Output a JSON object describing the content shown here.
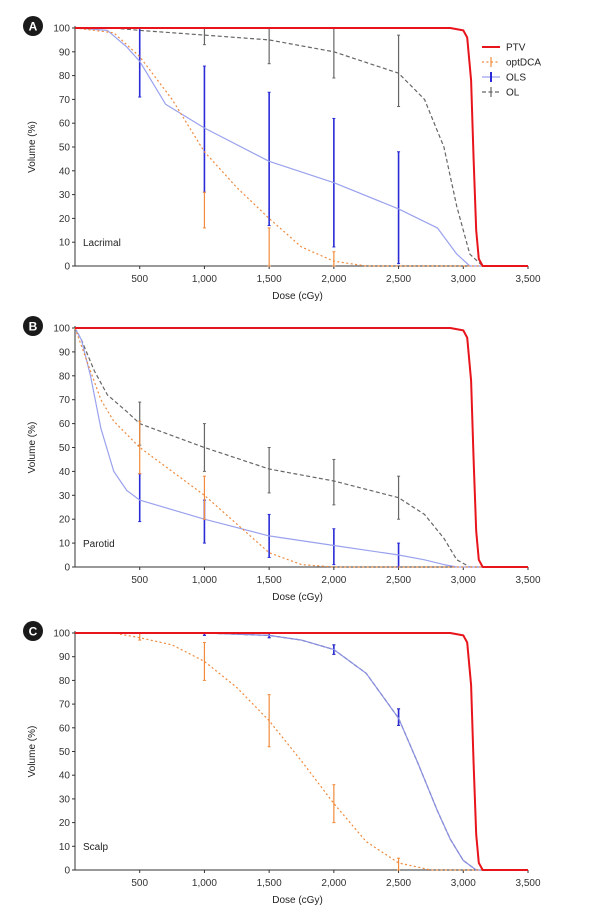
{
  "chart_data": [
    {
      "type": "line",
      "panel": "A",
      "label": "Lacrimal",
      "xlabel": "Dose (cGy)",
      "ylabel": "Volume (%)",
      "xlim": [
        0,
        3500
      ],
      "ylim": [
        0,
        100
      ],
      "xticks": [
        "500",
        "1,000",
        "1,500",
        "2,000",
        "2,500",
        "3,000",
        "3,500"
      ],
      "yticks": [
        "0",
        "10",
        "20",
        "30",
        "40",
        "50",
        "60",
        "70",
        "80",
        "90",
        "100"
      ],
      "legend": {
        "position": "top-right",
        "entries": [
          "PTV",
          "optDCA",
          "OLS",
          "OL"
        ]
      },
      "series": [
        {
          "name": "PTV",
          "color": "#e8141b",
          "style": "solid",
          "x": [
            0,
            2900,
            3000,
            3030,
            3060,
            3080,
            3100,
            3120,
            3150,
            3500
          ],
          "y": [
            100,
            100,
            99,
            96,
            78,
            45,
            15,
            3,
            0,
            0
          ]
        },
        {
          "name": "optDCA",
          "color": "#f08a3c",
          "style": "dotted",
          "x": [
            0,
            300,
            500,
            750,
            1000,
            1250,
            1500,
            1750,
            2000,
            2250,
            2500,
            3500
          ],
          "y": [
            100,
            98,
            88,
            70,
            48,
            33,
            20,
            8,
            2,
            0,
            0,
            0
          ],
          "errors": [
            {
              "x": 1000,
              "low": 16,
              "high": 31
            },
            {
              "x": 1500,
              "low": 0,
              "high": 16
            },
            {
              "x": 2000,
              "low": 0,
              "high": 6
            }
          ]
        },
        {
          "name": "OLS",
          "color": "#9aa2ee",
          "bar_color": "#2a2bd6",
          "style": "solid",
          "x": [
            0,
            250,
            400,
            500,
            700,
            1000,
            1500,
            2000,
            2500,
            2800,
            2950,
            3050,
            3120,
            3500
          ],
          "y": [
            100,
            99,
            92,
            86,
            68,
            58,
            44,
            35,
            24,
            16,
            5,
            0,
            0,
            0
          ],
          "errors": [
            {
              "x": 500,
              "low": 71,
              "high": 100
            },
            {
              "x": 1000,
              "low": 31,
              "high": 84
            },
            {
              "x": 1500,
              "low": 17,
              "high": 73
            },
            {
              "x": 2000,
              "low": 8,
              "high": 62
            },
            {
              "x": 2500,
              "low": 1,
              "high": 48
            }
          ]
        },
        {
          "name": "OL",
          "color": "#666666",
          "style": "dashed",
          "x": [
            0,
            300,
            500,
            1000,
            1500,
            2000,
            2500,
            2700,
            2850,
            2950,
            3050,
            3150,
            3500
          ],
          "y": [
            100,
            100,
            99,
            97,
            95,
            90,
            81,
            70,
            50,
            25,
            5,
            0,
            0
          ],
          "errors": [
            {
              "x": 1000,
              "low": 93,
              "high": 100
            },
            {
              "x": 1500,
              "low": 85,
              "high": 100
            },
            {
              "x": 2000,
              "low": 79,
              "high": 100
            },
            {
              "x": 2500,
              "low": 67,
              "high": 97
            }
          ]
        }
      ]
    },
    {
      "type": "line",
      "panel": "B",
      "label": "Parotid",
      "xlabel": "Dose (cGy)",
      "ylabel": "Volume (%)",
      "xlim": [
        0,
        3500
      ],
      "ylim": [
        0,
        100
      ],
      "xticks": [
        "500",
        "1,000",
        "1,500",
        "2,000",
        "2,500",
        "3,000",
        "3,500"
      ],
      "yticks": [
        "0",
        "10",
        "20",
        "30",
        "40",
        "50",
        "60",
        "70",
        "80",
        "90",
        "100"
      ],
      "series": [
        {
          "name": "PTV",
          "color": "#e8141b",
          "style": "solid",
          "x": [
            0,
            2900,
            3000,
            3030,
            3060,
            3080,
            3100,
            3120,
            3150,
            3500
          ],
          "y": [
            100,
            100,
            99,
            96,
            78,
            45,
            15,
            3,
            0,
            0
          ]
        },
        {
          "name": "optDCA",
          "color": "#f08a3c",
          "style": "dotted",
          "x": [
            0,
            100,
            200,
            300,
            500,
            750,
            1000,
            1250,
            1500,
            1750,
            2000,
            3500
          ],
          "y": [
            100,
            85,
            70,
            61,
            50,
            40,
            30,
            18,
            6,
            1,
            0,
            0
          ],
          "errors": [
            {
              "x": 500,
              "low": 39,
              "high": 61
            },
            {
              "x": 1000,
              "low": 20,
              "high": 38
            }
          ]
        },
        {
          "name": "OLS",
          "color": "#9aa2ee",
          "bar_color": "#2a2bd6",
          "style": "solid",
          "x": [
            0,
            50,
            120,
            200,
            300,
            400,
            500,
            1000,
            1500,
            2000,
            2500,
            2700,
            2850,
            2950,
            3500
          ],
          "y": [
            100,
            95,
            80,
            58,
            40,
            32,
            28,
            20,
            13,
            9,
            5,
            3,
            1,
            0,
            0
          ],
          "errors": [
            {
              "x": 500,
              "low": 19,
              "high": 39
            },
            {
              "x": 1000,
              "low": 10,
              "high": 28
            },
            {
              "x": 1500,
              "low": 4,
              "high": 22
            },
            {
              "x": 2000,
              "low": 1,
              "high": 16
            },
            {
              "x": 2500,
              "low": 0,
              "high": 10
            }
          ]
        },
        {
          "name": "OL",
          "color": "#666666",
          "style": "dashed",
          "x": [
            0,
            50,
            150,
            250,
            400,
            500,
            1000,
            1500,
            2000,
            2500,
            2700,
            2850,
            2950,
            3050,
            3500
          ],
          "y": [
            100,
            95,
            82,
            72,
            65,
            60,
            50,
            41,
            36,
            29,
            22,
            12,
            3,
            0,
            0
          ],
          "errors": [
            {
              "x": 500,
              "low": 51,
              "high": 69
            },
            {
              "x": 1000,
              "low": 40,
              "high": 60
            },
            {
              "x": 1500,
              "low": 31,
              "high": 50
            },
            {
              "x": 2000,
              "low": 26,
              "high": 45
            },
            {
              "x": 2500,
              "low": 20,
              "high": 38
            }
          ]
        }
      ]
    },
    {
      "type": "line",
      "panel": "C",
      "label": "Scalp",
      "xlabel": "Dose (cGy)",
      "ylabel": "Volume (%)",
      "xlim": [
        0,
        3500
      ],
      "ylim": [
        0,
        100
      ],
      "xticks": [
        "500",
        "1,000",
        "1,500",
        "2,000",
        "2,500",
        "3,000",
        "3,500"
      ],
      "yticks": [
        "0",
        "10",
        "20",
        "30",
        "40",
        "50",
        "60",
        "70",
        "80",
        "90",
        "100"
      ],
      "series": [
        {
          "name": "PTV",
          "color": "#e8141b",
          "style": "solid",
          "x": [
            0,
            2900,
            3000,
            3030,
            3060,
            3080,
            3100,
            3120,
            3150,
            3500
          ],
          "y": [
            100,
            100,
            99,
            96,
            78,
            45,
            15,
            3,
            0,
            0
          ]
        },
        {
          "name": "optDCA",
          "color": "#f08a3c",
          "style": "dotted",
          "x": [
            0,
            300,
            500,
            750,
            1000,
            1250,
            1500,
            1750,
            2000,
            2250,
            2500,
            2750,
            3000,
            3500
          ],
          "y": [
            100,
            100,
            98,
            95,
            88,
            77,
            63,
            46,
            28,
            12,
            3,
            0,
            0,
            0
          ],
          "errors": [
            {
              "x": 500,
              "low": 97,
              "high": 100
            },
            {
              "x": 1000,
              "low": 80,
              "high": 96
            },
            {
              "x": 1500,
              "low": 52,
              "high": 74
            },
            {
              "x": 2000,
              "low": 20,
              "high": 36
            },
            {
              "x": 2500,
              "low": 0,
              "high": 5
            }
          ]
        },
        {
          "name": "OLS",
          "color": "#8a90e4",
          "bar_color": "#2a2bd6",
          "style": "solid",
          "x": [
            0,
            1000,
            1500,
            1750,
            2000,
            2250,
            2500,
            2650,
            2800,
            2900,
            3000,
            3100,
            3500
          ],
          "y": [
            100,
            100,
            99,
            97,
            93,
            83,
            64,
            45,
            25,
            13,
            4,
            0,
            0
          ],
          "errors": [
            {
              "x": 1000,
              "low": 99,
              "high": 100
            },
            {
              "x": 1500,
              "low": 98,
              "high": 100
            },
            {
              "x": 2000,
              "low": 91,
              "high": 95
            },
            {
              "x": 2500,
              "low": 61,
              "high": 68
            }
          ]
        },
        {
          "name": "OL",
          "color": "#555555",
          "style": "dashed",
          "x": [
            0,
            1000,
            1500,
            1750,
            2000,
            2250,
            2500,
            2650,
            2800,
            2900,
            3000,
            3100,
            3500
          ],
          "y": [
            100,
            100,
            99,
            97,
            93,
            83,
            64,
            45,
            25,
            13,
            4,
            0,
            0
          ],
          "errors": [
            {
              "x": 1000,
              "low": 99,
              "high": 100
            },
            {
              "x": 1500,
              "low": 98,
              "high": 100
            },
            {
              "x": 2000,
              "low": 91,
              "high": 95
            },
            {
              "x": 2500,
              "low": 61,
              "high": 68
            }
          ]
        }
      ]
    }
  ]
}
